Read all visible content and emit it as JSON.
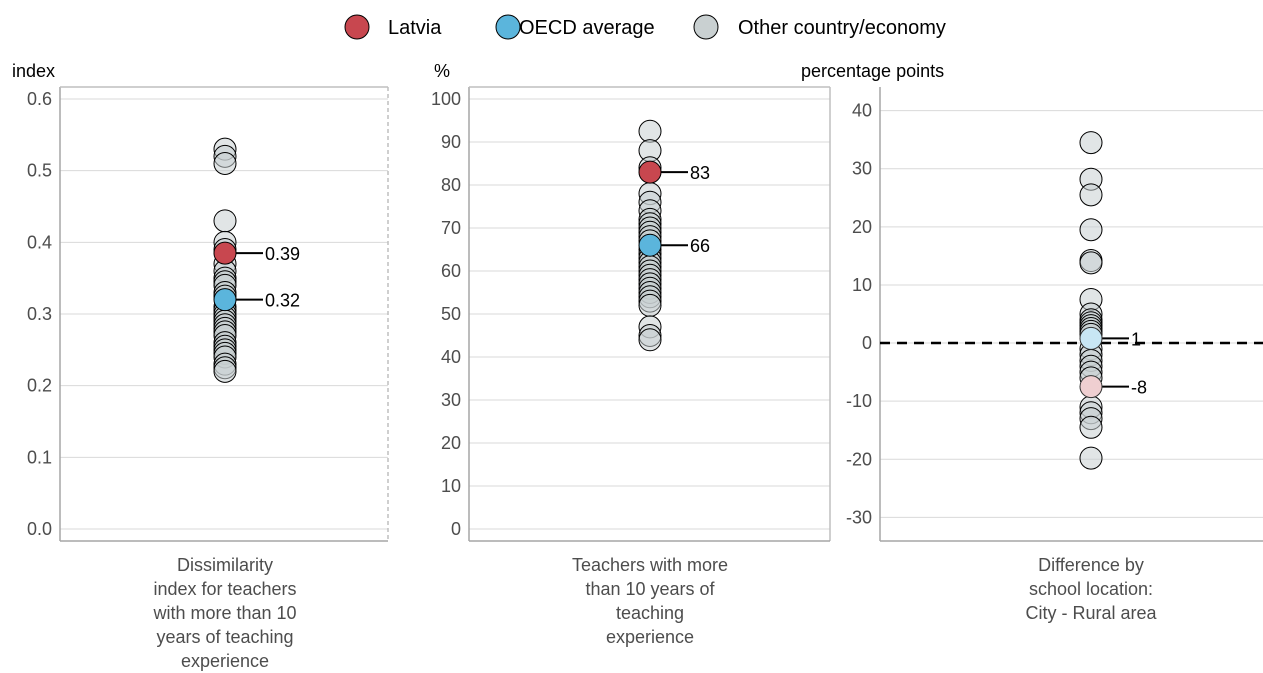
{
  "legend": [
    {
      "label": "Latvia",
      "color": "#c8474f"
    },
    {
      "label": "OECD average",
      "color": "#5bb5dc"
    },
    {
      "label": "Other country/economy",
      "color": "#c9d0d1"
    }
  ],
  "chart_data": [
    {
      "type": "scatter",
      "unit_label": "index",
      "xlabel": [
        "Dissimilarity",
        "index for teachers",
        "with more than 10",
        "years of teaching",
        "experience"
      ],
      "ylim": [
        0,
        0.6
      ],
      "yticks": [
        "0.0",
        "0.1",
        "0.2",
        "0.3",
        "0.4",
        "0.5",
        "0.6"
      ],
      "tick_values": [
        0,
        0.1,
        0.2,
        0.3,
        0.4,
        0.5,
        0.6
      ],
      "other_values": [
        0.53,
        0.52,
        0.51,
        0.43,
        0.4,
        0.39,
        0.37,
        0.36,
        0.35,
        0.345,
        0.34,
        0.33,
        0.325,
        0.31,
        0.305,
        0.3,
        0.295,
        0.29,
        0.285,
        0.28,
        0.275,
        0.27,
        0.26,
        0.255,
        0.25,
        0.245,
        0.24,
        0.23,
        0.225,
        0.22
      ],
      "highlight": {
        "value": 0.385,
        "label": "0.39"
      },
      "oecd": {
        "value": 0.32,
        "label": "0.32"
      }
    },
    {
      "type": "scatter",
      "unit_label": "%",
      "xlabel": [
        "Teachers with more",
        "than 10 years of",
        "teaching",
        "experience"
      ],
      "ylim": [
        0,
        100
      ],
      "yticks": [
        "0",
        "10",
        "20",
        "30",
        "40",
        "50",
        "60",
        "70",
        "80",
        "90",
        "100"
      ],
      "tick_values": [
        0,
        10,
        20,
        30,
        40,
        50,
        60,
        70,
        80,
        90,
        100
      ],
      "other_values": [
        92.5,
        88,
        84,
        78,
        76,
        74,
        72,
        71,
        70,
        69,
        68,
        67,
        65,
        64,
        63,
        62,
        61,
        60,
        59,
        58,
        57,
        56,
        55,
        54,
        53,
        52,
        47,
        45,
        44
      ],
      "highlight": {
        "value": 83,
        "label": "83"
      },
      "oecd": {
        "value": 66,
        "label": "66"
      }
    },
    {
      "type": "scatter",
      "unit_label": "percentage points",
      "xlabel": [
        "Difference by",
        "school location:",
        "City - Rural area"
      ],
      "ylim": [
        -32,
        42
      ],
      "yticks": [
        "-30",
        "-20",
        "-10",
        "0",
        "10",
        "20",
        "30",
        "40"
      ],
      "tick_values": [
        -30,
        -20,
        -10,
        0,
        10,
        20,
        30,
        40
      ],
      "zero_line": true,
      "other_values": [
        34.5,
        28.2,
        25.5,
        19.5,
        14.2,
        13.8,
        7.5,
        5,
        4,
        3.5,
        3,
        2.5,
        2,
        1.5,
        -1,
        -2,
        -3,
        -4,
        -5,
        -6,
        -11,
        -12,
        -13,
        -14.5,
        -19.8
      ],
      "highlight": {
        "value": -7.5,
        "label": "-8",
        "faded": true
      },
      "oecd": {
        "value": 0.8,
        "label": "1",
        "faded": true
      }
    }
  ]
}
